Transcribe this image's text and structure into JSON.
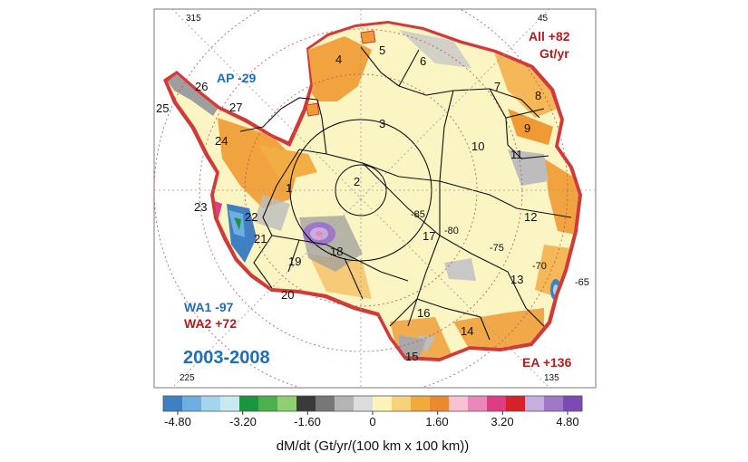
{
  "map": {
    "period": "2003-2008",
    "regions": {
      "AP": "AP -29",
      "All_line1": "All +82",
      "All_line2": "Gt/yr",
      "WA1": "WA1 -97",
      "WA2": "WA2 +72",
      "EA": "EA +136"
    },
    "longitudes": [
      "315",
      "45",
      "225",
      "135"
    ],
    "latitudes": [
      "-85",
      "-80",
      "-75",
      "-70",
      "-65"
    ],
    "basins": [
      "1",
      "2",
      "3",
      "4",
      "5",
      "6",
      "7",
      "8",
      "9",
      "10",
      "11",
      "12",
      "13",
      "14",
      "15",
      "16",
      "17",
      "18",
      "19",
      "20",
      "21",
      "22",
      "23",
      "24",
      "25",
      "26",
      "27"
    ]
  },
  "colorbar": {
    "ticks": [
      "-4.80",
      "-3.20",
      "-1.60",
      "0",
      "1.60",
      "3.20",
      "4.80"
    ],
    "label": "dM/dt (Gt/yr/(100 km x 100 km))",
    "colors": [
      "#3f7fc4",
      "#6eaee0",
      "#a3d6ee",
      "#c9e9ee",
      "#1a9640",
      "#4db04e",
      "#8fcf73",
      "#3a3a3a",
      "#777777",
      "#b4b4b4",
      "#dcdcdc",
      "#fbf3b8",
      "#f7d27a",
      "#f1aa3c",
      "#ea8a2c",
      "#f6c3d3",
      "#ec86b8",
      "#de3d86",
      "#d6202a",
      "#c6aee0",
      "#9e78c8",
      "#7c4ab5"
    ]
  },
  "colors": {
    "ice": "#fbf5c3",
    "coastOrange": "#ef9a32",
    "gray": "#bdbdbd",
    "blueText": "#1f6fb8",
    "redText": "#b71c1c"
  }
}
